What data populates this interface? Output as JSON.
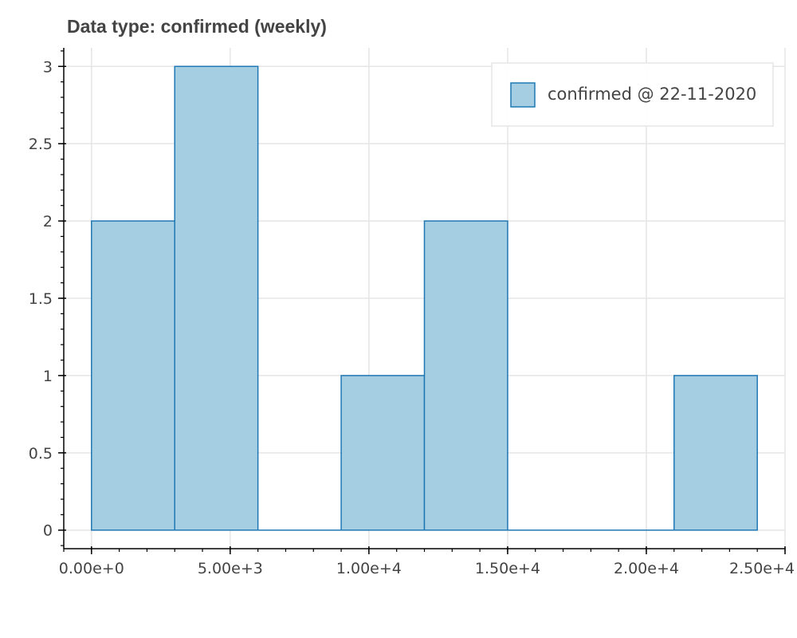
{
  "chart_data": {
    "type": "bar",
    "title": "Data type: confirmed (weekly)",
    "xlabel": "",
    "ylabel": "",
    "bins": [
      {
        "x0": 0,
        "x1": 3000,
        "count": 2
      },
      {
        "x0": 3000,
        "x1": 6000,
        "count": 3
      },
      {
        "x0": 6000,
        "x1": 9000,
        "count": 0
      },
      {
        "x0": 9000,
        "x1": 12000,
        "count": 1
      },
      {
        "x0": 12000,
        "x1": 15000,
        "count": 2
      },
      {
        "x0": 15000,
        "x1": 18000,
        "count": 0
      },
      {
        "x0": 18000,
        "x1": 21000,
        "count": 0
      },
      {
        "x0": 21000,
        "x1": 24000,
        "count": 1
      }
    ],
    "series": [
      {
        "name": "confirmed @ 22-11-2020"
      }
    ],
    "xlim": [
      -1000,
      25000
    ],
    "ylim": [
      -0.12,
      3.12
    ],
    "x_ticks": [
      {
        "value": 0,
        "label": "0.00e+0"
      },
      {
        "value": 5000,
        "label": "5.00e+3"
      },
      {
        "value": 10000,
        "label": "1.00e+4"
      },
      {
        "value": 15000,
        "label": "1.50e+4"
      },
      {
        "value": 20000,
        "label": "2.00e+4"
      },
      {
        "value": 25000,
        "label": "2.50e+4"
      }
    ],
    "y_ticks": [
      {
        "value": 0,
        "label": "0"
      },
      {
        "value": 0.5,
        "label": "0.5"
      },
      {
        "value": 1,
        "label": "1"
      },
      {
        "value": 1.5,
        "label": "1.5"
      },
      {
        "value": 2,
        "label": "2"
      },
      {
        "value": 2.5,
        "label": "2.5"
      },
      {
        "value": 3,
        "label": "3"
      }
    ],
    "grid": true,
    "legend_position": "top-right",
    "colors": {
      "fill": "#a6cee3",
      "stroke": "#1f78b4",
      "grid": "#e5e5e5",
      "axis": "#000000",
      "text": "#444444"
    }
  }
}
